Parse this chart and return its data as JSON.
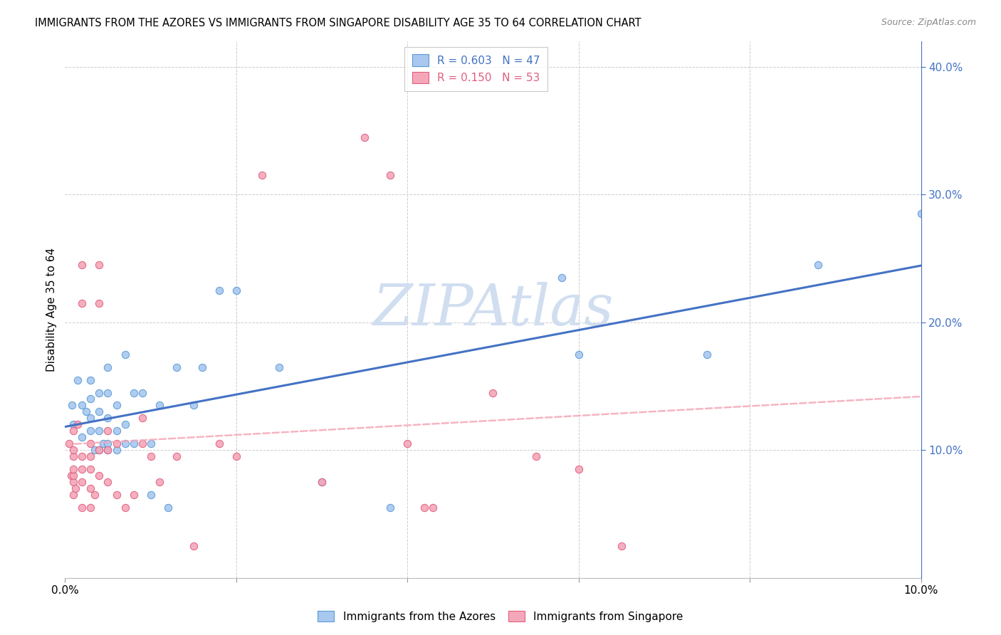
{
  "title": "IMMIGRANTS FROM THE AZORES VS IMMIGRANTS FROM SINGAPORE DISABILITY AGE 35 TO 64 CORRELATION CHART",
  "source": "Source: ZipAtlas.com",
  "ylabel": "Disability Age 35 to 64",
  "legend_azores": {
    "R": 0.603,
    "N": 47,
    "label": "Immigrants from the Azores"
  },
  "legend_singapore": {
    "R": 0.15,
    "N": 53,
    "label": "Immigrants from Singapore"
  },
  "color_azores_fill": "#A8C8F0",
  "color_azores_edge": "#5B9BD5",
  "color_singapore_fill": "#F4A7B8",
  "color_singapore_edge": "#E06080",
  "color_azores_line": "#4472C4",
  "color_singapore_line": "#F4A7B8",
  "color_right_axis": "#4472C4",
  "color_watermark": "#D0DEF0",
  "background": "#FFFFFF",
  "grid_color": "#CCCCCC",
  "azores_x": [
    0.0008,
    0.001,
    0.0015,
    0.002,
    0.002,
    0.0025,
    0.003,
    0.003,
    0.003,
    0.003,
    0.0035,
    0.004,
    0.004,
    0.004,
    0.004,
    0.0045,
    0.005,
    0.005,
    0.005,
    0.005,
    0.005,
    0.006,
    0.006,
    0.006,
    0.007,
    0.007,
    0.007,
    0.008,
    0.008,
    0.009,
    0.01,
    0.01,
    0.011,
    0.012,
    0.013,
    0.015,
    0.016,
    0.018,
    0.02,
    0.025,
    0.03,
    0.038,
    0.058,
    0.06,
    0.075,
    0.088,
    0.1
  ],
  "azores_y": [
    0.135,
    0.12,
    0.155,
    0.11,
    0.135,
    0.13,
    0.115,
    0.125,
    0.14,
    0.155,
    0.1,
    0.1,
    0.115,
    0.13,
    0.145,
    0.105,
    0.1,
    0.105,
    0.125,
    0.145,
    0.165,
    0.1,
    0.115,
    0.135,
    0.105,
    0.12,
    0.175,
    0.105,
    0.145,
    0.145,
    0.065,
    0.105,
    0.135,
    0.055,
    0.165,
    0.135,
    0.165,
    0.225,
    0.225,
    0.165,
    0.075,
    0.055,
    0.235,
    0.175,
    0.175,
    0.245,
    0.285
  ],
  "singapore_x": [
    0.0005,
    0.0007,
    0.001,
    0.001,
    0.001,
    0.001,
    0.001,
    0.001,
    0.001,
    0.0012,
    0.0015,
    0.002,
    0.002,
    0.002,
    0.002,
    0.002,
    0.002,
    0.003,
    0.003,
    0.003,
    0.003,
    0.003,
    0.0035,
    0.004,
    0.004,
    0.004,
    0.004,
    0.005,
    0.005,
    0.005,
    0.006,
    0.006,
    0.007,
    0.008,
    0.009,
    0.009,
    0.01,
    0.011,
    0.013,
    0.015,
    0.018,
    0.02,
    0.023,
    0.03,
    0.035,
    0.038,
    0.04,
    0.042,
    0.043,
    0.05,
    0.055,
    0.06,
    0.065
  ],
  "singapore_y": [
    0.105,
    0.08,
    0.065,
    0.075,
    0.08,
    0.085,
    0.095,
    0.1,
    0.115,
    0.07,
    0.12,
    0.055,
    0.075,
    0.085,
    0.095,
    0.215,
    0.245,
    0.055,
    0.07,
    0.085,
    0.095,
    0.105,
    0.065,
    0.08,
    0.1,
    0.215,
    0.245,
    0.075,
    0.1,
    0.115,
    0.065,
    0.105,
    0.055,
    0.065,
    0.105,
    0.125,
    0.095,
    0.075,
    0.095,
    0.025,
    0.105,
    0.095,
    0.315,
    0.075,
    0.345,
    0.315,
    0.105,
    0.055,
    0.055,
    0.145,
    0.095,
    0.085,
    0.025
  ],
  "xlim": [
    0.0,
    0.1
  ],
  "ylim": [
    0.0,
    0.42
  ],
  "xticks": [
    0.0,
    0.02,
    0.04,
    0.06,
    0.08,
    0.1
  ],
  "xticklabels": [
    "0.0%",
    "",
    "",
    "",
    "",
    "10.0%"
  ],
  "yticks_right": [
    0.1,
    0.2,
    0.3,
    0.4
  ],
  "yticklabels_right": [
    "10.0%",
    "20.0%",
    "30.0%",
    "40.0%"
  ]
}
